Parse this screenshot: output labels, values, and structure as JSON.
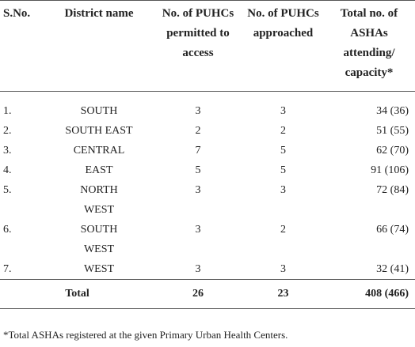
{
  "table": {
    "header": [
      "S.No.",
      "District name",
      "No. of PUHCs permitted to access",
      "No. of PUHCs approached",
      "Total no. of ASHAs attending/ capacity*"
    ],
    "rows": [
      [
        "1.",
        "SOUTH",
        "3",
        "3",
        "34 (36)"
      ],
      [
        "2.",
        "SOUTH EAST",
        "2",
        "2",
        "51 (55)"
      ],
      [
        "3.",
        "CENTRAL",
        "7",
        "5",
        "62 (70)"
      ],
      [
        "4.",
        "EAST",
        "5",
        "5",
        "91 (106)"
      ],
      [
        "5.",
        "NORTH WEST",
        "3",
        "3",
        "72 (84)"
      ],
      [
        "6.",
        "SOUTH WEST",
        "3",
        "2",
        "66 (74)"
      ],
      [
        "7.",
        "WEST",
        "3",
        "3",
        "32 (41)"
      ]
    ],
    "total": [
      "Total",
      "26",
      "23",
      "408 (466)"
    ]
  },
  "footnote": "*Total ASHAs registered at the given Primary Urban Health Centers."
}
